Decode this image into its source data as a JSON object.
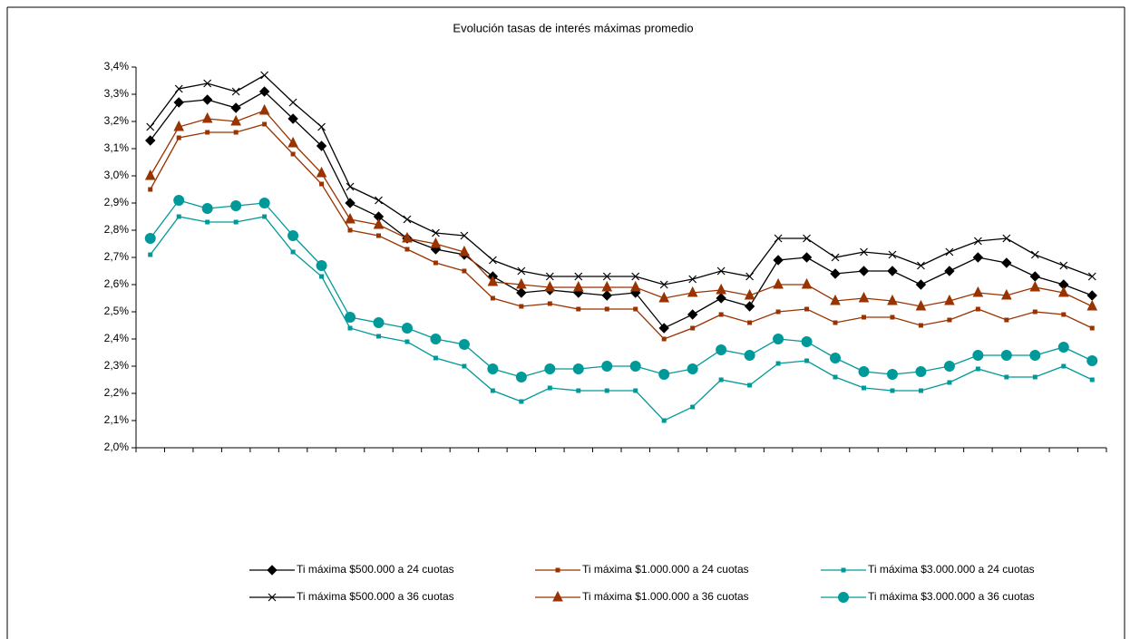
{
  "chart_data": {
    "type": "line",
    "title": "Evolución tasas de interés máximas promedio",
    "categories": [
      null,
      null,
      null,
      null,
      null,
      null,
      null,
      null,
      null,
      null,
      null,
      null,
      null,
      null,
      null,
      null,
      null,
      null,
      null,
      null,
      null,
      null,
      null,
      null,
      null,
      null,
      null,
      null,
      null,
      null,
      null,
      null,
      null,
      null
    ],
    "ylim": [
      2.0,
      3.4
    ],
    "yticks": [
      {
        "value": 2.0,
        "label": "2,0%"
      },
      {
        "value": 2.1,
        "label": "2,1%"
      },
      {
        "value": 2.2,
        "label": "2,2%"
      },
      {
        "value": 2.3,
        "label": "2,3%"
      },
      {
        "value": 2.4,
        "label": "2,4%"
      },
      {
        "value": 2.5,
        "label": "2,5%"
      },
      {
        "value": 2.6,
        "label": "2,6%"
      },
      {
        "value": 2.7,
        "label": "2,7%"
      },
      {
        "value": 2.8,
        "label": "2,8%"
      },
      {
        "value": 2.9,
        "label": "2,9%"
      },
      {
        "value": 3.0,
        "label": "3,0%"
      },
      {
        "value": 3.1,
        "label": "3,1%"
      },
      {
        "value": 3.2,
        "label": "3,2%"
      },
      {
        "value": 3.3,
        "label": "3,3%"
      },
      {
        "value": 3.4,
        "label": "3,4%"
      }
    ],
    "grid": false,
    "series": [
      {
        "name": "Ti máxima $500.000 a 24 cuotas",
        "color": "#000000",
        "marker": "diamond",
        "values": [
          3.13,
          3.27,
          3.28,
          3.25,
          3.31,
          3.21,
          3.11,
          2.9,
          2.85,
          2.77,
          2.73,
          2.71,
          2.63,
          2.57,
          2.58,
          2.57,
          2.56,
          2.57,
          2.44,
          2.49,
          2.55,
          2.52,
          2.69,
          2.7,
          2.64,
          2.65,
          2.65,
          2.6,
          2.65,
          2.7,
          2.68,
          2.63,
          2.6,
          2.56
        ]
      },
      {
        "name": "Ti máxima $1.000.000 a 24 cuotas",
        "color": "#993300",
        "marker": "square",
        "values": [
          2.95,
          3.14,
          3.16,
          3.16,
          3.19,
          3.08,
          2.97,
          2.8,
          2.78,
          2.73,
          2.68,
          2.65,
          2.55,
          2.52,
          2.53,
          2.51,
          2.51,
          2.51,
          2.4,
          2.44,
          2.49,
          2.46,
          2.5,
          2.51,
          2.46,
          2.48,
          2.48,
          2.45,
          2.47,
          2.51,
          2.47,
          2.5,
          2.49,
          2.44
        ]
      },
      {
        "name": "Ti máxima $3.000.000 a 24 cuotas",
        "color": "#009999",
        "marker": "square",
        "values": [
          2.71,
          2.85,
          2.83,
          2.83,
          2.85,
          2.72,
          2.63,
          2.44,
          2.41,
          2.39,
          2.33,
          2.3,
          2.21,
          2.17,
          2.22,
          2.21,
          2.21,
          2.21,
          2.1,
          2.15,
          2.25,
          2.23,
          2.31,
          2.32,
          2.26,
          2.22,
          2.21,
          2.21,
          2.24,
          2.29,
          2.26,
          2.26,
          2.3,
          2.25
        ]
      },
      {
        "name": "Ti máxima $500.000 a 36 cuotas",
        "color": "#000000",
        "marker": "x",
        "values": [
          3.18,
          3.32,
          3.34,
          3.31,
          3.37,
          3.27,
          3.18,
          2.96,
          2.91,
          2.84,
          2.79,
          2.78,
          2.69,
          2.65,
          2.63,
          2.63,
          2.63,
          2.63,
          2.6,
          2.62,
          2.65,
          2.63,
          2.77,
          2.77,
          2.7,
          2.72,
          2.71,
          2.67,
          2.72,
          2.76,
          2.77,
          2.71,
          2.67,
          2.63
        ]
      },
      {
        "name": "Ti máxima $1.000.000 a 36 cuotas",
        "color": "#993300",
        "marker": "triangle",
        "values": [
          3.0,
          3.18,
          3.21,
          3.2,
          3.24,
          3.12,
          3.01,
          2.84,
          2.82,
          2.77,
          2.75,
          2.72,
          2.61,
          2.6,
          2.59,
          2.59,
          2.59,
          2.59,
          2.55,
          2.57,
          2.58,
          2.56,
          2.6,
          2.6,
          2.54,
          2.55,
          2.54,
          2.52,
          2.54,
          2.57,
          2.56,
          2.59,
          2.57,
          2.52
        ]
      },
      {
        "name": "Ti máxima $3.000.000 a 36 cuotas",
        "color": "#009999",
        "marker": "circle",
        "values": [
          2.77,
          2.91,
          2.88,
          2.89,
          2.9,
          2.78,
          2.67,
          2.48,
          2.46,
          2.44,
          2.4,
          2.38,
          2.29,
          2.26,
          2.29,
          2.29,
          2.3,
          2.3,
          2.27,
          2.29,
          2.36,
          2.34,
          2.4,
          2.39,
          2.33,
          2.28,
          2.27,
          2.28,
          2.3,
          2.34,
          2.34,
          2.34,
          2.37,
          2.32
        ]
      }
    ]
  }
}
